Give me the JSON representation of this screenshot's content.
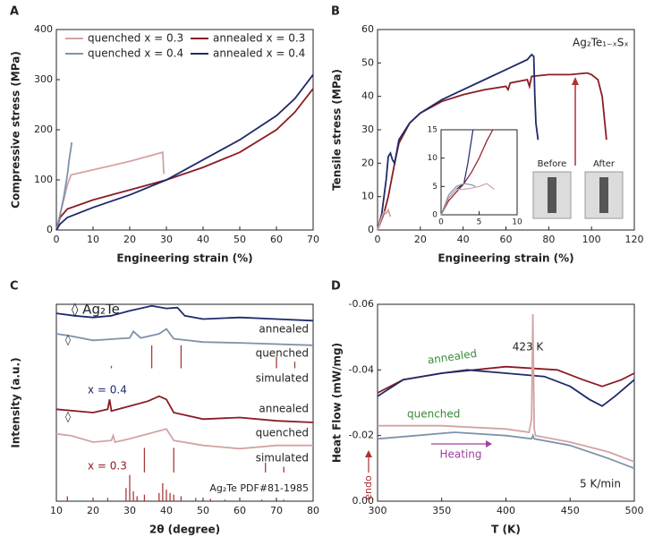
{
  "chart_data": [
    {
      "type": "line",
      "panel": "A",
      "xlabel": "Engineering strain (%)",
      "ylabel": "Compressive stress (MPa)",
      "xlim": [
        0,
        70
      ],
      "xticks": [
        0,
        10,
        20,
        30,
        40,
        50,
        60,
        70
      ],
      "ylim": [
        0,
        400
      ],
      "yticks": [
        0,
        100,
        200,
        300,
        400
      ],
      "series": [
        {
          "name": "quenched x = 0.3",
          "color": "#d4a3a3",
          "x": [
            0,
            1,
            2,
            3,
            4,
            10,
            20,
            28,
            29,
            29.3
          ],
          "values": [
            0,
            30,
            60,
            90,
            110,
            120,
            137,
            153,
            155,
            112
          ]
        },
        {
          "name": "annealed x = 0.3",
          "color": "#8b1c24",
          "x": [
            0,
            1,
            3,
            10,
            20,
            30,
            40,
            50,
            60,
            65,
            70
          ],
          "values": [
            0,
            25,
            42,
            60,
            80,
            100,
            125,
            155,
            200,
            235,
            282
          ]
        },
        {
          "name": "quenched x = 0.4",
          "color": "#7f93ab",
          "x": [
            0,
            1,
            2,
            3,
            3.5,
            4,
            4.2
          ],
          "values": [
            0,
            30,
            65,
            110,
            140,
            165,
            175
          ]
        },
        {
          "name": "annealed x = 0.4",
          "color": "#1f2a6b",
          "x": [
            0,
            1,
            3,
            10,
            20,
            30,
            40,
            50,
            60,
            65,
            70
          ],
          "values": [
            0,
            12,
            25,
            45,
            70,
            100,
            140,
            180,
            228,
            262,
            310
          ]
        }
      ]
    },
    {
      "type": "line",
      "panel": "B",
      "xlabel": "Engineering strain (%)",
      "ylabel": "Tensile stress (MPa)",
      "xlim": [
        0,
        120
      ],
      "xticks": [
        0,
        20,
        40,
        60,
        80,
        100,
        120
      ],
      "ylim": [
        0,
        60
      ],
      "yticks": [
        0,
        10,
        20,
        30,
        40,
        50,
        60
      ],
      "annotations": [
        "Ag₂Te₁₋ₓSₓ",
        "Before",
        "After"
      ],
      "series": [
        {
          "color": "#8b1c24",
          "x": [
            0,
            3,
            5,
            8,
            10,
            15,
            20,
            30,
            40,
            50,
            60,
            61,
            62,
            70,
            71,
            72,
            80,
            90,
            98,
            100,
            103,
            105,
            107
          ],
          "values": [
            0,
            5,
            10,
            20,
            26,
            32,
            35,
            38.5,
            40.5,
            42,
            43,
            42,
            44,
            45,
            43,
            46,
            46.5,
            46.5,
            47,
            46.5,
            45,
            40,
            27
          ]
        },
        {
          "color": "#1f2a6b",
          "x": [
            0,
            2,
            4,
            5,
            6,
            7,
            8,
            10,
            15,
            20,
            30,
            40,
            50,
            60,
            70,
            72,
            73,
            73.5,
            74,
            75
          ],
          "values": [
            0,
            5,
            15,
            22,
            23,
            21,
            20,
            27,
            32,
            35,
            39,
            42,
            45,
            48,
            51,
            52.5,
            52,
            40,
            32,
            27
          ]
        },
        {
          "color": "#d4a3a3",
          "x": [
            0,
            2,
            3,
            4,
            5,
            6
          ],
          "values": [
            0,
            4,
            5.5,
            5,
            6,
            4
          ]
        }
      ]
    },
    {
      "type": "line",
      "inset": true,
      "xlim": [
        0,
        10
      ],
      "xticks": [
        0,
        5,
        10
      ],
      "ylim": [
        0,
        15
      ],
      "yticks": [
        0,
        5,
        10,
        15
      ],
      "series": [
        {
          "color": "#1f2a6b",
          "x": [
            0,
            1,
            2,
            3,
            3.5,
            4.2
          ],
          "values": [
            0,
            3,
            4.5,
            5.5,
            9,
            15
          ]
        },
        {
          "color": "#8b1c24",
          "x": [
            0,
            1,
            2,
            3,
            4,
            5,
            6,
            6.8
          ],
          "values": [
            0,
            2.5,
            4,
            5.5,
            7.5,
            10,
            13,
            15
          ]
        },
        {
          "color": "#d4a3a3",
          "x": [
            0,
            1,
            2,
            3,
            4,
            5,
            6,
            7
          ],
          "values": [
            0,
            3,
            4.5,
            4.5,
            4.7,
            5,
            5.5,
            4.5
          ]
        },
        {
          "color": "#7f93ab",
          "x": [
            0,
            1,
            2,
            3,
            4,
            4.5
          ],
          "values": [
            0,
            3.5,
            5,
            5.5,
            5.3,
            5
          ]
        }
      ]
    },
    {
      "type": "line",
      "panel": "C",
      "xlabel": "2θ (degree)",
      "ylabel": "Intensity (a.u.)",
      "xlim": [
        10,
        80
      ],
      "xticks": [
        10,
        20,
        30,
        40,
        50,
        60,
        70,
        80
      ],
      "ylim": [
        0,
        12
      ],
      "annotations": [
        "◊ Ag₂Te",
        "annealed",
        "quenched",
        "simulated",
        "x = 0.4",
        "annealed",
        "quenched",
        "simulated",
        "x = 0.3",
        "Ag₂Te PDF#81-1985",
        "◊",
        "◊"
      ],
      "series": [
        {
          "color": "#1f2a6b",
          "x": [
            10,
            15,
            20,
            25,
            30,
            36,
            40,
            43,
            45,
            50,
            60,
            70,
            80
          ],
          "values": [
            11.45,
            11.3,
            11.2,
            11.3,
            11.6,
            11.9,
            11.75,
            11.8,
            11.3,
            11.1,
            11.2,
            11.1,
            11.0
          ]
        },
        {
          "color": "#7f93ab",
          "x": [
            10,
            13,
            20,
            30,
            31,
            33,
            38,
            40,
            42,
            50,
            60,
            80
          ],
          "values": [
            10.2,
            10.1,
            9.8,
            9.95,
            10.35,
            9.95,
            10.2,
            10.5,
            9.9,
            9.7,
            9.65,
            9.5
          ]
        },
        {
          "color": "#8b1c24",
          "x": [
            10,
            20,
            24,
            24.5,
            25,
            30,
            35,
            38,
            40,
            42,
            50,
            60,
            70,
            80
          ],
          "values": [
            5.6,
            5.4,
            5.6,
            6.2,
            5.5,
            5.8,
            6.1,
            6.4,
            6.2,
            5.4,
            5.0,
            5.1,
            4.9,
            4.8
          ]
        },
        {
          "color": "#d4a3a3",
          "x": [
            10,
            14,
            20,
            25,
            25.5,
            26,
            30,
            35,
            40,
            42,
            50,
            60,
            70,
            80
          ],
          "values": [
            4.1,
            4.0,
            3.6,
            3.7,
            4.0,
            3.6,
            3.8,
            4.1,
            4.4,
            3.7,
            3.4,
            3.2,
            3.4,
            3.4
          ]
        }
      ],
      "sticks": [
        {
          "color": "#a83a3a",
          "x": [
            25,
            36,
            44,
            70,
            75
          ],
          "values": [
            0.15,
            1.4,
            1.4,
            0.7,
            0.4
          ]
        },
        {
          "color": "#a83a3a",
          "x": [
            34,
            42,
            67,
            72
          ],
          "values": [
            1.5,
            1.5,
            0.6,
            0.35
          ]
        },
        {
          "color": "#a83a3a",
          "x": [
            13,
            20,
            24,
            29,
            30,
            31,
            32,
            34,
            38,
            39,
            40,
            41,
            42,
            44,
            48,
            52,
            56,
            60,
            66,
            72
          ],
          "values": [
            0.3,
            0.15,
            0.2,
            0.8,
            1.6,
            0.6,
            0.3,
            0.4,
            0.5,
            1.1,
            0.7,
            0.5,
            0.4,
            0.3,
            0.2,
            0.15,
            0.1,
            0.1,
            0.1,
            0.1
          ]
        }
      ]
    },
    {
      "type": "line",
      "panel": "D",
      "xlabel": "T (K)",
      "ylabel": "Heat Flow (mW/mg)",
      "xlim": [
        300,
        500
      ],
      "xticks": [
        300,
        350,
        400,
        450,
        500
      ],
      "ylim": [
        0,
        -0.06
      ],
      "yticks": [
        -0.06,
        -0.04,
        -0.02,
        {
          "value": 0,
          "label": "0.00"
        }
      ],
      "annotations": [
        "annealed",
        "quenched",
        "423 K",
        "Heating",
        "5 K/min",
        "endo"
      ],
      "series": [
        {
          "color": "#8b1c24",
          "x": [
            300,
            320,
            350,
            400,
            440,
            460,
            475,
            490,
            500
          ],
          "values": [
            -0.033,
            -0.037,
            -0.039,
            -0.041,
            -0.04,
            -0.037,
            -0.035,
            -0.037,
            -0.039
          ]
        },
        {
          "color": "#1f2a6b",
          "x": [
            300,
            320,
            350,
            370,
            400,
            430,
            450,
            465,
            475,
            485,
            500
          ],
          "values": [
            -0.032,
            -0.037,
            -0.039,
            -0.04,
            -0.039,
            -0.038,
            -0.035,
            -0.031,
            -0.029,
            -0.032,
            -0.037
          ]
        },
        {
          "color": "#d4a3a3",
          "x": [
            300,
            350,
            400,
            418,
            420,
            421,
            422,
            423,
            450,
            480,
            500
          ],
          "values": [
            -0.023,
            -0.023,
            -0.022,
            -0.021,
            -0.025,
            -0.057,
            -0.022,
            -0.02,
            -0.018,
            -0.015,
            -0.012
          ]
        },
        {
          "color": "#7f93ab",
          "x": [
            300,
            330,
            360,
            400,
            420,
            421,
            422,
            450,
            480,
            500
          ],
          "values": [
            -0.019,
            -0.02,
            -0.021,
            -0.02,
            -0.019,
            -0.02,
            -0.019,
            -0.017,
            -0.013,
            -0.01
          ]
        }
      ]
    }
  ]
}
